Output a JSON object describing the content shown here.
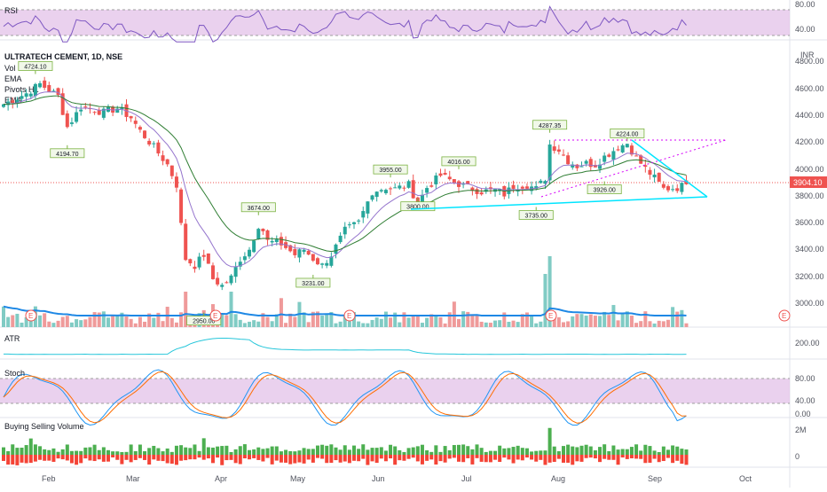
{
  "colors": {
    "up": "#26a69a",
    "down": "#ef5350",
    "rsi_line": "#7e57c2",
    "rsi_band": "#e1bee7",
    "vol_ma": "#1e88e5",
    "atr": "#26c6da",
    "ema_fast": "#9575cd",
    "ema_slow": "#2e7d32",
    "triangle": "#00e5ff",
    "pivot_dots": "#d500f9",
    "price_marker": "#ef5350"
  },
  "header": {
    "symbol_label": "ULTRATECH CEMENT, 1D, NSE",
    "indicators": [
      "Vol",
      "EMA",
      "Pivots HL",
      "EMA"
    ],
    "currency": "INR"
  },
  "panes": {
    "rsi": {
      "title": "RSI",
      "ticks": [
        "80.00",
        "40.00"
      ]
    },
    "price": {
      "ticks": [
        "4800.00",
        "4600.00",
        "4400.00",
        "4200.00",
        "4000.00",
        "3800.00",
        "3600.00",
        "3400.00",
        "3200.00",
        "3000.00"
      ],
      "last_price": "3904.10"
    },
    "atr": {
      "title": "ATR",
      "ticks": [
        "200.00"
      ]
    },
    "stoch": {
      "title": "Stoch",
      "ticks": [
        "80.00",
        "40.00",
        "0.00"
      ]
    },
    "bsv": {
      "title": "Buying Selling Volume",
      "ticks": [
        "2M",
        "0"
      ]
    }
  },
  "earnings_markers": [
    "E",
    "E",
    "E",
    "E",
    "E"
  ],
  "x_axis": [
    "Feb",
    "Mar",
    "Apr",
    "May",
    "Jun",
    "Jul",
    "Aug",
    "Sep",
    "Oct"
  ],
  "chart_data": {
    "type": "candlestick",
    "title": "ULTRATECH CEMENT, 1D, NSE",
    "ylabel": "INR",
    "ylim": [
      2900,
      4900
    ],
    "x_months": [
      "Feb",
      "Mar",
      "Apr",
      "May",
      "Jun",
      "Jul",
      "Aug",
      "Sep",
      "Oct"
    ],
    "close_path": [
      [
        0,
        4500
      ],
      [
        5,
        4580
      ],
      [
        8,
        4650
      ],
      [
        12,
        4560
      ],
      [
        14,
        4330
      ],
      [
        17,
        4480
      ],
      [
        22,
        4440
      ],
      [
        25,
        4470
      ],
      [
        28,
        4400
      ],
      [
        30,
        4300
      ],
      [
        33,
        4180
      ],
      [
        36,
        4050
      ],
      [
        38,
        3900
      ],
      [
        39,
        3600
      ],
      [
        40,
        3350
      ],
      [
        42,
        3300
      ],
      [
        44,
        3380
      ],
      [
        46,
        3200
      ],
      [
        48,
        3150
      ],
      [
        50,
        3210
      ],
      [
        52,
        3350
      ],
      [
        54,
        3420
      ],
      [
        56,
        3600
      ],
      [
        57,
        3560
      ],
      [
        58,
        3480
      ],
      [
        61,
        3460
      ],
      [
        64,
        3380
      ],
      [
        66,
        3420
      ],
      [
        68,
        3350
      ],
      [
        70,
        3300
      ],
      [
        72,
        3380
      ],
      [
        75,
        3560
      ],
      [
        78,
        3620
      ],
      [
        81,
        3850
      ],
      [
        84,
        3880
      ],
      [
        86,
        3870
      ],
      [
        89,
        3900
      ],
      [
        91,
        3760
      ],
      [
        93,
        3880
      ],
      [
        96,
        3970
      ],
      [
        99,
        3920
      ],
      [
        102,
        3880
      ],
      [
        105,
        3850
      ],
      [
        108,
        3860
      ],
      [
        110,
        3830
      ],
      [
        112,
        3890
      ],
      [
        115,
        3900
      ],
      [
        117,
        3870
      ],
      [
        119,
        3950
      ],
      [
        120,
        4200
      ],
      [
        122,
        4160
      ],
      [
        124,
        4080
      ],
      [
        126,
        4040
      ],
      [
        128,
        4060
      ],
      [
        130,
        4050
      ],
      [
        132,
        4110
      ],
      [
        135,
        4180
      ],
      [
        137,
        4210
      ],
      [
        139,
        4100
      ],
      [
        141,
        4020
      ],
      [
        143,
        3950
      ],
      [
        145,
        3870
      ],
      [
        148,
        3880
      ],
      [
        150,
        3904
      ]
    ],
    "pivot_labels": [
      {
        "text": "4724.10",
        "value": 4724.1,
        "bar": 7,
        "type": "high"
      },
      {
        "text": "4194.70",
        "value": 4194.7,
        "bar": 14,
        "type": "low"
      },
      {
        "text": "2950.00",
        "value": 2950.0,
        "bar": 44,
        "type": "low"
      },
      {
        "text": "3674.00",
        "value": 3674.0,
        "bar": 56,
        "type": "high"
      },
      {
        "text": "3231.00",
        "value": 3231.0,
        "bar": 68,
        "type": "low"
      },
      {
        "text": "3955.00",
        "value": 3955.0,
        "bar": 85,
        "type": "high"
      },
      {
        "text": "3800.00",
        "value": 3800.0,
        "bar": 91,
        "type": "low"
      },
      {
        "text": "4016.00",
        "value": 4016.0,
        "bar": 100,
        "type": "high"
      },
      {
        "text": "3735.00",
        "value": 3735.0,
        "bar": 117,
        "type": "low"
      },
      {
        "text": "4287.35",
        "value": 4287.35,
        "bar": 120,
        "type": "high"
      },
      {
        "text": "4224.00",
        "value": 4224.0,
        "bar": 137,
        "type": "high"
      },
      {
        "text": "3926.00",
        "value": 3926.0,
        "bar": 132,
        "type": "low"
      }
    ],
    "last_price": 3904.1,
    "rsi_levels": [
      80,
      40
    ],
    "stoch_levels": [
      80,
      40,
      0
    ]
  }
}
